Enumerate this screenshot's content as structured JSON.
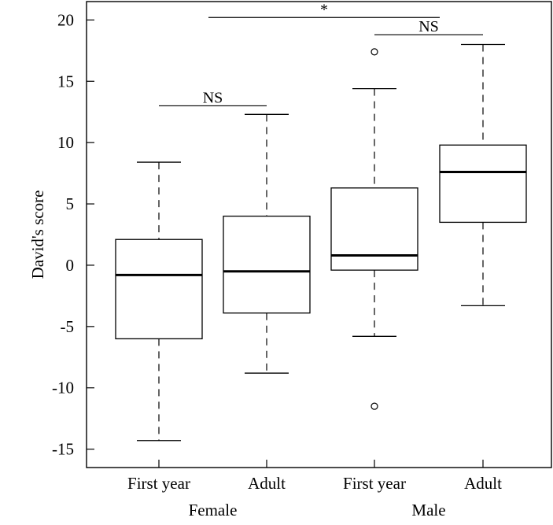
{
  "chart_data": {
    "type": "box",
    "ylabel": "David's score",
    "ylim": [
      -16.5,
      21.5
    ],
    "yticks": [
      20,
      15,
      10,
      5,
      0,
      -5,
      -10,
      -15
    ],
    "categories": [
      "First year",
      "Adult",
      "First year",
      "Adult"
    ],
    "groups": [
      {
        "label": "Female",
        "categories": [
          0,
          1
        ]
      },
      {
        "label": "Male",
        "categories": [
          2,
          3
        ]
      }
    ],
    "boxes": [
      {
        "category": "First year",
        "group": "Female",
        "whisker_low": -14.3,
        "q1": -6.0,
        "median": -0.8,
        "q3": 2.1,
        "whisker_high": 8.4,
        "outliers": []
      },
      {
        "category": "Adult",
        "group": "Female",
        "whisker_low": -8.8,
        "q1": -3.9,
        "median": -0.5,
        "q3": 4.0,
        "whisker_high": 12.3,
        "outliers": []
      },
      {
        "category": "First year",
        "group": "Male",
        "whisker_low": -5.8,
        "q1": -0.4,
        "median": 0.8,
        "q3": 6.3,
        "whisker_high": 14.4,
        "outliers": [
          17.4,
          -11.5
        ]
      },
      {
        "category": "Adult",
        "group": "Male",
        "whisker_low": -3.3,
        "q1": 3.5,
        "median": 7.6,
        "q3": 9.8,
        "whisker_high": 18.0,
        "outliers": []
      }
    ],
    "comparisons": [
      {
        "between": [
          0,
          1
        ],
        "label": "NS",
        "y": 13.0
      },
      {
        "between": [
          2,
          3
        ],
        "label": "NS",
        "y": 18.8
      },
      {
        "between": [
          "Female",
          "Male"
        ],
        "label": "*",
        "y": 20.2
      }
    ],
    "grid": false,
    "legend": "none"
  }
}
